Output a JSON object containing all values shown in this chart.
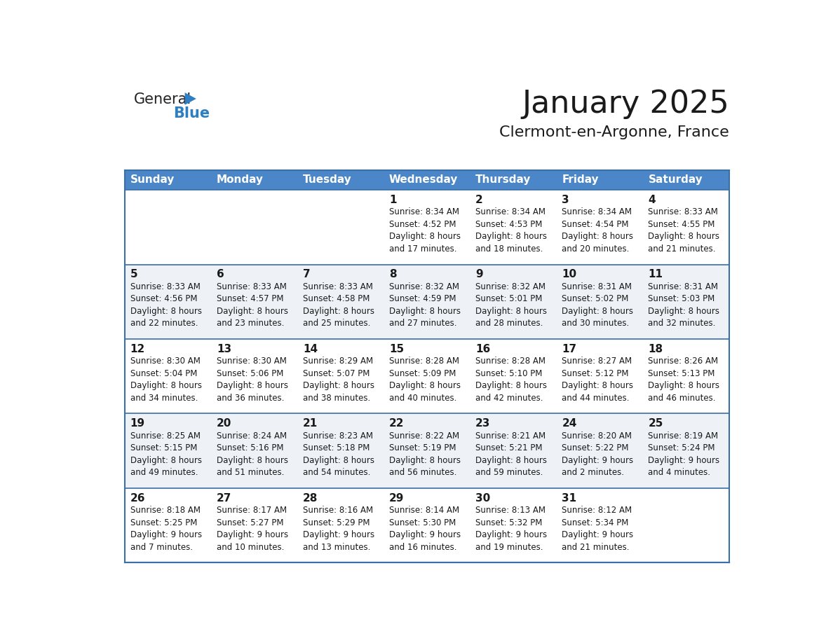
{
  "title": "January 2025",
  "subtitle": "Clermont-en-Argonne, France",
  "header_bg": "#4a86c8",
  "header_text": "#ffffff",
  "row_bg_even": "#ffffff",
  "row_bg_odd": "#eef2f7",
  "border_color": "#3a6fa8",
  "sep_line_color": "#3a6fa8",
  "text_color": "#1a1a1a",
  "day_names": [
    "Sunday",
    "Monday",
    "Tuesday",
    "Wednesday",
    "Thursday",
    "Friday",
    "Saturday"
  ],
  "weeks": [
    [
      {
        "day": "",
        "info": ""
      },
      {
        "day": "",
        "info": ""
      },
      {
        "day": "",
        "info": ""
      },
      {
        "day": "1",
        "info": "Sunrise: 8:34 AM\nSunset: 4:52 PM\nDaylight: 8 hours\nand 17 minutes."
      },
      {
        "day": "2",
        "info": "Sunrise: 8:34 AM\nSunset: 4:53 PM\nDaylight: 8 hours\nand 18 minutes."
      },
      {
        "day": "3",
        "info": "Sunrise: 8:34 AM\nSunset: 4:54 PM\nDaylight: 8 hours\nand 20 minutes."
      },
      {
        "day": "4",
        "info": "Sunrise: 8:33 AM\nSunset: 4:55 PM\nDaylight: 8 hours\nand 21 minutes."
      }
    ],
    [
      {
        "day": "5",
        "info": "Sunrise: 8:33 AM\nSunset: 4:56 PM\nDaylight: 8 hours\nand 22 minutes."
      },
      {
        "day": "6",
        "info": "Sunrise: 8:33 AM\nSunset: 4:57 PM\nDaylight: 8 hours\nand 23 minutes."
      },
      {
        "day": "7",
        "info": "Sunrise: 8:33 AM\nSunset: 4:58 PM\nDaylight: 8 hours\nand 25 minutes."
      },
      {
        "day": "8",
        "info": "Sunrise: 8:32 AM\nSunset: 4:59 PM\nDaylight: 8 hours\nand 27 minutes."
      },
      {
        "day": "9",
        "info": "Sunrise: 8:32 AM\nSunset: 5:01 PM\nDaylight: 8 hours\nand 28 minutes."
      },
      {
        "day": "10",
        "info": "Sunrise: 8:31 AM\nSunset: 5:02 PM\nDaylight: 8 hours\nand 30 minutes."
      },
      {
        "day": "11",
        "info": "Sunrise: 8:31 AM\nSunset: 5:03 PM\nDaylight: 8 hours\nand 32 minutes."
      }
    ],
    [
      {
        "day": "12",
        "info": "Sunrise: 8:30 AM\nSunset: 5:04 PM\nDaylight: 8 hours\nand 34 minutes."
      },
      {
        "day": "13",
        "info": "Sunrise: 8:30 AM\nSunset: 5:06 PM\nDaylight: 8 hours\nand 36 minutes."
      },
      {
        "day": "14",
        "info": "Sunrise: 8:29 AM\nSunset: 5:07 PM\nDaylight: 8 hours\nand 38 minutes."
      },
      {
        "day": "15",
        "info": "Sunrise: 8:28 AM\nSunset: 5:09 PM\nDaylight: 8 hours\nand 40 minutes."
      },
      {
        "day": "16",
        "info": "Sunrise: 8:28 AM\nSunset: 5:10 PM\nDaylight: 8 hours\nand 42 minutes."
      },
      {
        "day": "17",
        "info": "Sunrise: 8:27 AM\nSunset: 5:12 PM\nDaylight: 8 hours\nand 44 minutes."
      },
      {
        "day": "18",
        "info": "Sunrise: 8:26 AM\nSunset: 5:13 PM\nDaylight: 8 hours\nand 46 minutes."
      }
    ],
    [
      {
        "day": "19",
        "info": "Sunrise: 8:25 AM\nSunset: 5:15 PM\nDaylight: 8 hours\nand 49 minutes."
      },
      {
        "day": "20",
        "info": "Sunrise: 8:24 AM\nSunset: 5:16 PM\nDaylight: 8 hours\nand 51 minutes."
      },
      {
        "day": "21",
        "info": "Sunrise: 8:23 AM\nSunset: 5:18 PM\nDaylight: 8 hours\nand 54 minutes."
      },
      {
        "day": "22",
        "info": "Sunrise: 8:22 AM\nSunset: 5:19 PM\nDaylight: 8 hours\nand 56 minutes."
      },
      {
        "day": "23",
        "info": "Sunrise: 8:21 AM\nSunset: 5:21 PM\nDaylight: 8 hours\nand 59 minutes."
      },
      {
        "day": "24",
        "info": "Sunrise: 8:20 AM\nSunset: 5:22 PM\nDaylight: 9 hours\nand 2 minutes."
      },
      {
        "day": "25",
        "info": "Sunrise: 8:19 AM\nSunset: 5:24 PM\nDaylight: 9 hours\nand 4 minutes."
      }
    ],
    [
      {
        "day": "26",
        "info": "Sunrise: 8:18 AM\nSunset: 5:25 PM\nDaylight: 9 hours\nand 7 minutes."
      },
      {
        "day": "27",
        "info": "Sunrise: 8:17 AM\nSunset: 5:27 PM\nDaylight: 9 hours\nand 10 minutes."
      },
      {
        "day": "28",
        "info": "Sunrise: 8:16 AM\nSunset: 5:29 PM\nDaylight: 9 hours\nand 13 minutes."
      },
      {
        "day": "29",
        "info": "Sunrise: 8:14 AM\nSunset: 5:30 PM\nDaylight: 9 hours\nand 16 minutes."
      },
      {
        "day": "30",
        "info": "Sunrise: 8:13 AM\nSunset: 5:32 PM\nDaylight: 9 hours\nand 19 minutes."
      },
      {
        "day": "31",
        "info": "Sunrise: 8:12 AM\nSunset: 5:34 PM\nDaylight: 9 hours\nand 21 minutes."
      },
      {
        "day": "",
        "info": ""
      }
    ]
  ],
  "logo_general_color": "#222222",
  "logo_blue_color": "#2e7fc2",
  "logo_triangle_color": "#2e7fc2",
  "title_fontsize": 32,
  "subtitle_fontsize": 16,
  "header_fontsize": 11,
  "day_num_fontsize": 11,
  "info_fontsize": 8.5
}
